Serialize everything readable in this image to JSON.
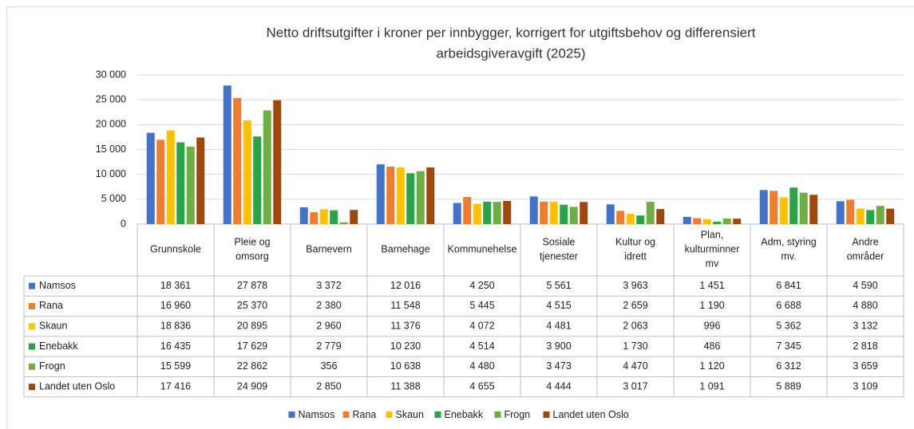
{
  "chart_data": {
    "type": "bar",
    "title": [
      "Netto driftsutgifter i kroner per innbygger, korrigert for utgiftsbehov og differensiert",
      "arbeidsgiveravgift (2025)"
    ],
    "categories": [
      "Grunnskole",
      "Pleie og omsorg",
      "Barnevern",
      "Barnehage",
      "Kommunehelse",
      "Sosiale tjenester",
      "Kultur og idrett",
      "Plan, kulturminner mv",
      "Adm, styring mv.",
      "Andre områder"
    ],
    "series": [
      {
        "name": "Namsos",
        "color": "#4472c4",
        "values": [
          18361,
          27878,
          3372,
          12016,
          4250,
          5561,
          3963,
          1451,
          6841,
          4590
        ],
        "value_labels": [
          "18 361",
          "27 878",
          "3 372",
          "12 016",
          "4 250",
          "5 561",
          "3 963",
          "1 451",
          "6 841",
          "4 590"
        ]
      },
      {
        "name": "Rana",
        "color": "#ed7d31",
        "values": [
          16960,
          25370,
          2380,
          11548,
          5445,
          4515,
          2659,
          1190,
          6688,
          4880
        ],
        "value_labels": [
          "16 960",
          "25 370",
          "2 380",
          "11 548",
          "5 445",
          "4 515",
          "2 659",
          "1 190",
          "6 688",
          "4 880"
        ]
      },
      {
        "name": "Skaun",
        "color": "#ffc000",
        "values": [
          18836,
          20895,
          2960,
          11376,
          4072,
          4481,
          2063,
          996,
          5362,
          3132
        ],
        "value_labels": [
          "18 836",
          "20 895",
          "2 960",
          "11 376",
          "4 072",
          "4 481",
          "2 063",
          "996",
          "5 362",
          "3 132"
        ]
      },
      {
        "name": "Enebakk",
        "color": "#2ca24a",
        "values": [
          16435,
          17629,
          2779,
          10230,
          4514,
          3900,
          1730,
          486,
          7345,
          2818
        ],
        "value_labels": [
          "16 435",
          "17 629",
          "2 779",
          "10 230",
          "4 514",
          "3 900",
          "1 730",
          "486",
          "7 345",
          "2 818"
        ]
      },
      {
        "name": "Frogn",
        "color": "#70ad47",
        "values": [
          15599,
          22862,
          356,
          10638,
          4480,
          3473,
          4470,
          1120,
          6312,
          3659
        ],
        "value_labels": [
          "15 599",
          "22 862",
          "356",
          "10 638",
          "4 480",
          "3 473",
          "4 470",
          "1 120",
          "6 312",
          "3 659"
        ]
      },
      {
        "name": "Landet uten Oslo",
        "color": "#9e480e",
        "values": [
          17416,
          24909,
          2850,
          11388,
          4655,
          4444,
          3017,
          1091,
          5889,
          3109
        ],
        "value_labels": [
          "17 416",
          "24 909",
          "2 850",
          "11 388",
          "4 655",
          "4 444",
          "3 017",
          "1 091",
          "5 889",
          "3 109"
        ]
      }
    ],
    "ylim": [
      0,
      30000
    ],
    "yticks": [
      0,
      {
        "value": 5000,
        "label": "5 000"
      },
      {
        "value": 10000,
        "label": "10 000"
      },
      {
        "value": 15000,
        "label": "15 000"
      },
      {
        "value": 20000,
        "label": "20 000"
      },
      {
        "value": 25000,
        "label": "25 000"
      },
      {
        "value": 30000,
        "label": "30 000"
      }
    ],
    "grid": true,
    "legend": "bottom"
  }
}
